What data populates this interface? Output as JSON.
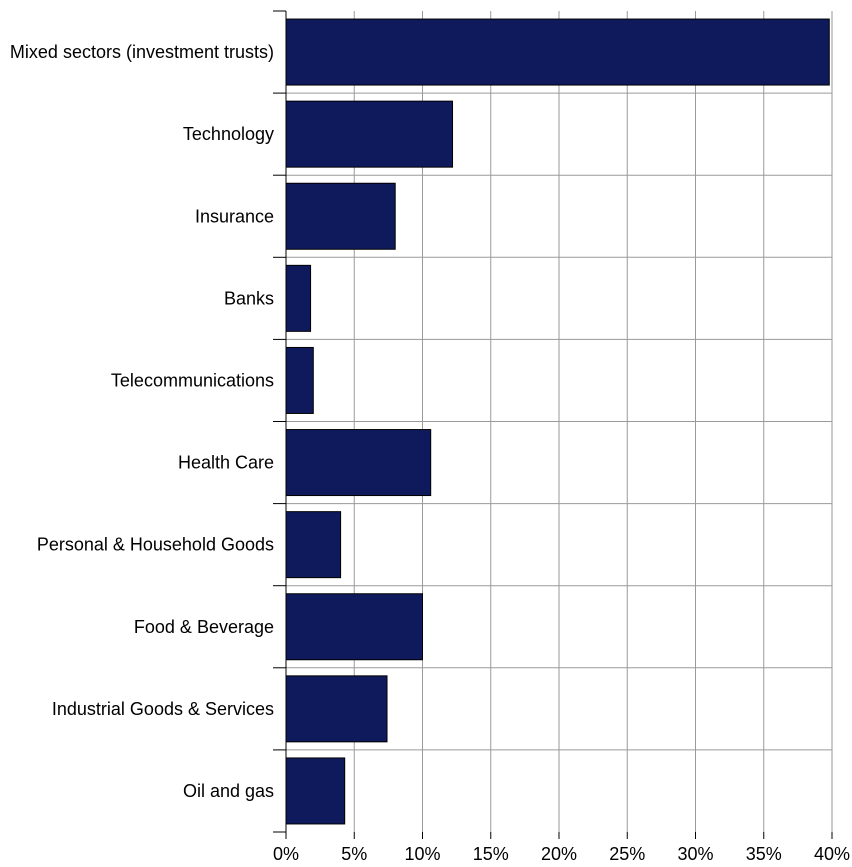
{
  "chart_data": {
    "type": "bar",
    "orientation": "horizontal",
    "categories": [
      "Mixed sectors (investment trusts)",
      "Technology",
      "Insurance",
      "Banks",
      "Telecommunications",
      "Health Care",
      "Personal & Household Goods",
      "Food & Beverage",
      "Industrial Goods & Services",
      "Oil and gas"
    ],
    "values": [
      39.8,
      12.2,
      8.0,
      1.8,
      2.0,
      10.6,
      4.0,
      10.0,
      7.4,
      4.3
    ],
    "xlim": [
      0,
      40
    ],
    "x_ticks": [
      0,
      5,
      10,
      15,
      20,
      25,
      30,
      35,
      40
    ],
    "x_tick_labels": [
      "0%",
      "5%",
      "10%",
      "15%",
      "20%",
      "25%",
      "30%",
      "35%",
      "40%"
    ],
    "grid": true,
    "bar_color": "#0f1a5c",
    "bar_edge_color": "#000000",
    "grid_color": "#9a9a9a",
    "title": "",
    "xlabel": "",
    "ylabel": ""
  }
}
